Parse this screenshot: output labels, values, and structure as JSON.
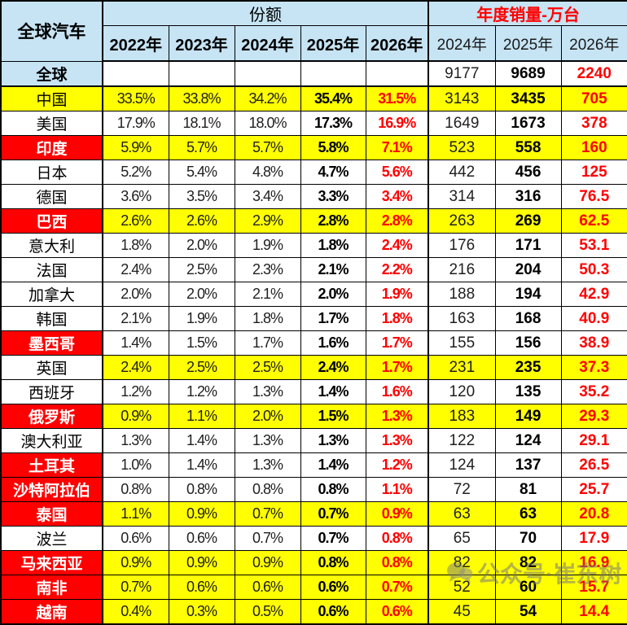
{
  "header": {
    "corner_title": "全球汽车",
    "share_title": "份额",
    "sales_title": "年度销量-万台",
    "share_years": [
      "2022年",
      "2023年",
      "2024年",
      "2025年",
      "2026年"
    ],
    "sales_years": [
      "2024年",
      "2025年",
      "2026年"
    ]
  },
  "colors": {
    "header_blue": "#c6e4f4",
    "highlight_yellow": "#ffff00",
    "highlight_red": "#ff0000",
    "accent_red_text": "#ff0000"
  },
  "watermark": {
    "icon": "chat-bubbles-icon",
    "text": "公众号·崔东树"
  },
  "chart_data": {
    "type": "table",
    "title": "全球汽车",
    "column_groups": [
      "份额",
      "年度销量-万台"
    ],
    "share_years": [
      "2022年",
      "2023年",
      "2024年",
      "2025年",
      "2026年"
    ],
    "sales_years": [
      "2024年",
      "2025年",
      "2026年"
    ],
    "rows": [
      {
        "name": "全球",
        "name_style": "blue",
        "data_bg": "white",
        "share": [
          "",
          "",
          "",
          "",
          ""
        ],
        "sales": [
          "9177",
          "9689",
          "2240"
        ]
      },
      {
        "name": "中国",
        "name_style": "yellow",
        "data_bg": "yellow",
        "share": [
          "33.5%",
          "33.8%",
          "34.2%",
          "35.4%",
          "31.5%"
        ],
        "sales": [
          "3143",
          "3435",
          "705"
        ]
      },
      {
        "name": "美国",
        "name_style": "white",
        "data_bg": "white",
        "share": [
          "17.9%",
          "18.1%",
          "18.0%",
          "17.3%",
          "16.9%"
        ],
        "sales": [
          "1649",
          "1673",
          "378"
        ]
      },
      {
        "name": "印度",
        "name_style": "red",
        "data_bg": "yellow",
        "share": [
          "5.9%",
          "5.7%",
          "5.7%",
          "5.8%",
          "7.1%"
        ],
        "sales": [
          "523",
          "558",
          "160"
        ]
      },
      {
        "name": "日本",
        "name_style": "white",
        "data_bg": "white",
        "share": [
          "5.2%",
          "5.4%",
          "4.8%",
          "4.7%",
          "5.6%"
        ],
        "sales": [
          "442",
          "456",
          "125"
        ]
      },
      {
        "name": "德国",
        "name_style": "white",
        "data_bg": "white",
        "share": [
          "3.6%",
          "3.5%",
          "3.4%",
          "3.3%",
          "3.4%"
        ],
        "sales": [
          "314",
          "316",
          "76.5"
        ]
      },
      {
        "name": "巴西",
        "name_style": "red",
        "data_bg": "yellow",
        "share": [
          "2.6%",
          "2.6%",
          "2.9%",
          "2.8%",
          "2.8%"
        ],
        "sales": [
          "263",
          "269",
          "62.5"
        ]
      },
      {
        "name": "意大利",
        "name_style": "white",
        "data_bg": "white",
        "share": [
          "1.8%",
          "2.0%",
          "1.9%",
          "1.8%",
          "2.4%"
        ],
        "sales": [
          "176",
          "171",
          "53.1"
        ]
      },
      {
        "name": "法国",
        "name_style": "white",
        "data_bg": "white",
        "share": [
          "2.4%",
          "2.5%",
          "2.3%",
          "2.1%",
          "2.2%"
        ],
        "sales": [
          "216",
          "204",
          "50.3"
        ]
      },
      {
        "name": "加拿大",
        "name_style": "white",
        "data_bg": "white",
        "share": [
          "2.0%",
          "2.0%",
          "2.1%",
          "2.0%",
          "1.9%"
        ],
        "sales": [
          "188",
          "194",
          "42.9"
        ]
      },
      {
        "name": "韩国",
        "name_style": "white",
        "data_bg": "white",
        "share": [
          "2.1%",
          "1.9%",
          "1.8%",
          "1.7%",
          "1.8%"
        ],
        "sales": [
          "163",
          "168",
          "40.9"
        ]
      },
      {
        "name": "墨西哥",
        "name_style": "red",
        "data_bg": "white",
        "share": [
          "1.4%",
          "1.5%",
          "1.7%",
          "1.6%",
          "1.7%"
        ],
        "sales": [
          "155",
          "156",
          "38.9"
        ]
      },
      {
        "name": "英国",
        "name_style": "white",
        "data_bg": "yellow",
        "share": [
          "2.4%",
          "2.5%",
          "2.5%",
          "2.4%",
          "1.7%"
        ],
        "sales": [
          "231",
          "235",
          "37.3"
        ]
      },
      {
        "name": "西班牙",
        "name_style": "white",
        "data_bg": "white",
        "share": [
          "1.2%",
          "1.2%",
          "1.3%",
          "1.4%",
          "1.6%"
        ],
        "sales": [
          "120",
          "135",
          "35.2"
        ]
      },
      {
        "name": "俄罗斯",
        "name_style": "red",
        "data_bg": "yellow",
        "share": [
          "0.9%",
          "1.1%",
          "2.0%",
          "1.5%",
          "1.3%"
        ],
        "sales": [
          "183",
          "149",
          "29.3"
        ]
      },
      {
        "name": "澳大利亚",
        "name_style": "white",
        "data_bg": "white",
        "share": [
          "1.3%",
          "1.4%",
          "1.3%",
          "1.3%",
          "1.3%"
        ],
        "sales": [
          "122",
          "124",
          "29.1"
        ]
      },
      {
        "name": "土耳其",
        "name_style": "red",
        "data_bg": "white",
        "share": [
          "1.0%",
          "1.4%",
          "1.3%",
          "1.4%",
          "1.2%"
        ],
        "sales": [
          "124",
          "137",
          "26.5"
        ]
      },
      {
        "name": "沙特阿拉伯",
        "name_style": "red",
        "data_bg": "white",
        "share": [
          "0.8%",
          "0.8%",
          "0.8%",
          "0.8%",
          "1.1%"
        ],
        "sales": [
          "72",
          "81",
          "25.7"
        ]
      },
      {
        "name": "泰国",
        "name_style": "red",
        "data_bg": "yellow",
        "share": [
          "1.1%",
          "0.9%",
          "0.7%",
          "0.7%",
          "0.9%"
        ],
        "sales": [
          "63",
          "63",
          "20.8"
        ]
      },
      {
        "name": "波兰",
        "name_style": "white",
        "data_bg": "white",
        "share": [
          "0.6%",
          "0.6%",
          "0.7%",
          "0.7%",
          "0.8%"
        ],
        "sales": [
          "65",
          "70",
          "17.9"
        ]
      },
      {
        "name": "马来西亚",
        "name_style": "red",
        "data_bg": "yellow",
        "share": [
          "0.9%",
          "0.9%",
          "0.9%",
          "0.8%",
          "0.8%"
        ],
        "sales": [
          "82",
          "82",
          "16.9"
        ]
      },
      {
        "name": "南非",
        "name_style": "red",
        "data_bg": "yellow",
        "share": [
          "0.7%",
          "0.6%",
          "0.6%",
          "0.6%",
          "0.7%"
        ],
        "sales": [
          "52",
          "60",
          "15.7"
        ]
      },
      {
        "name": "越南",
        "name_style": "red",
        "data_bg": "yellow",
        "share": [
          "0.4%",
          "0.3%",
          "0.5%",
          "0.6%",
          "0.6%"
        ],
        "sales": [
          "45",
          "54",
          "14.4"
        ]
      }
    ]
  }
}
